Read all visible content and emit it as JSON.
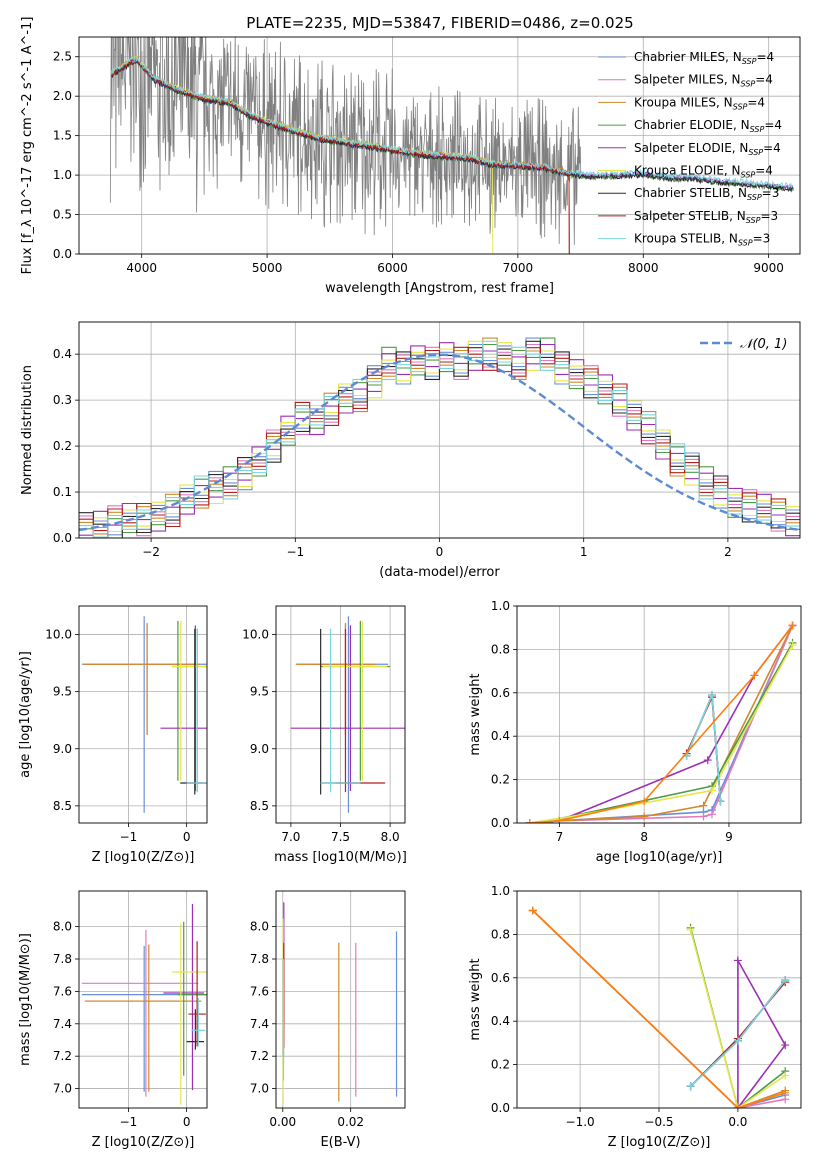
{
  "figure": {
    "title": "PLATE=2235, MJD=53847, FIBERID=0486, z=0.025"
  },
  "colors": {
    "grid": "#b0b0b0",
    "models": [
      "#6b8fd6",
      "#e377c2",
      "#d18a2a",
      "#4f9a45",
      "#9b2fb5",
      "#e4e64a",
      "#2b2b2b",
      "#b21f1f",
      "#7ad4e0"
    ],
    "gaussian": "#5b8ad6",
    "spectrum_data": "#808080",
    "extra_orange": "#ff7f0e"
  },
  "chart_data": [
    {
      "id": "spectrum",
      "type": "line",
      "title": "PLATE=2235, MJD=53847, FIBERID=0486, z=0.025",
      "xlabel": "wavelength [Angstrom, rest frame]",
      "ylabel": "Flux [f_λ 10^-17 erg cm^-2 s^-1 A^-1]",
      "xlim": [
        3500,
        9250
      ],
      "ylim": [
        0,
        2.75
      ],
      "xticks": [
        4000,
        5000,
        6000,
        7000,
        8000,
        9000
      ],
      "yticks": [
        0.0,
        0.5,
        1.0,
        1.5,
        2.0,
        2.5
      ],
      "legend": {
        "placement": "top-right",
        "entries": [
          {
            "model": "Chabrier MILES",
            "nssp": "4"
          },
          {
            "model": "Salpeter MILES",
            "nssp": "4"
          },
          {
            "model": "Kroupa MILES",
            "nssp": "4"
          },
          {
            "model": "Chabrier ELODIE",
            "nssp": "4"
          },
          {
            "model": "Salpeter ELODIE",
            "nssp": "4"
          },
          {
            "model": "Kroupa ELODIE",
            "nssp": "4"
          },
          {
            "model": "Chabrier STELIB",
            "nssp": "3"
          },
          {
            "model": "Salpeter STELIB",
            "nssp": "3"
          },
          {
            "model": "Kroupa STELIB",
            "nssp": "3"
          }
        ]
      },
      "continuum": {
        "x": [
          3750,
          3850,
          3950,
          4100,
          4300,
          4500,
          4700,
          4850,
          5000,
          5200,
          5400,
          5600,
          5800,
          6000,
          6200,
          6400,
          6600,
          6800,
          7000,
          7200,
          7400,
          7600,
          7800,
          8000,
          8200,
          8400,
          8600,
          8800,
          9000,
          9200
        ],
        "y": [
          2.25,
          2.35,
          2.45,
          2.2,
          2.05,
          1.95,
          1.9,
          1.75,
          1.65,
          1.55,
          1.45,
          1.4,
          1.35,
          1.3,
          1.25,
          1.22,
          1.2,
          1.12,
          1.1,
          1.08,
          1.0,
          0.97,
          0.98,
          1.0,
          0.95,
          0.95,
          0.9,
          0.88,
          0.85,
          0.82
        ]
      },
      "model_cutoffs": [
        {
          "series": "Kroupa ELODIE",
          "x_end": 6800
        },
        {
          "series": "MILES and Salpeter STELIB",
          "x_end": 7410
        }
      ]
    },
    {
      "id": "residual-hist",
      "type": "step",
      "xlabel": "(data-model)/error",
      "ylabel": "Normed distribution",
      "xlim": [
        -2.5,
        2.5
      ],
      "ylim": [
        0,
        0.47
      ],
      "xticks": [
        -2,
        -1,
        0,
        1,
        2
      ],
      "yticks": [
        0.0,
        0.1,
        0.2,
        0.3,
        0.4
      ],
      "legend": {
        "placement": "top-right",
        "entries": [
          "𝒩(0, 1)"
        ]
      },
      "bin_width": 0.1,
      "bin_start": -2.5,
      "base_values": [
        0.02,
        0.03,
        0.035,
        0.04,
        0.04,
        0.05,
        0.06,
        0.08,
        0.1,
        0.11,
        0.12,
        0.14,
        0.17,
        0.2,
        0.23,
        0.26,
        0.26,
        0.28,
        0.3,
        0.31,
        0.34,
        0.38,
        0.37,
        0.39,
        0.38,
        0.39,
        0.38,
        0.4,
        0.4,
        0.39,
        0.38,
        0.4,
        0.4,
        0.37,
        0.36,
        0.34,
        0.32,
        0.3,
        0.27,
        0.24,
        0.2,
        0.17,
        0.15,
        0.12,
        0.1,
        0.08,
        0.07,
        0.06,
        0.05,
        0.04
      ]
    },
    {
      "id": "age-vs-Z",
      "type": "errorbar",
      "xlabel": "Z [log10(Z/Z⊙)]",
      "ylabel": "age [log10(age/yr)]",
      "xlim": [
        -1.85,
        0.35
      ],
      "ylim": [
        8.35,
        10.25
      ],
      "xticks": [
        -1,
        0
      ],
      "yticks": [
        8.5,
        9.0,
        9.5,
        10.0
      ],
      "points": [
        {
          "x": -0.73,
          "y": 9.74,
          "xerr": [
            1.07,
            1.07
          ],
          "yerr": [
            1.3,
            0.42
          ]
        },
        {
          "x": -0.68,
          "y": 9.74,
          "xerr": [
            1.1,
            0.9
          ],
          "yerr": [
            0.62,
            0.36
          ]
        },
        {
          "x": -0.68,
          "y": 9.74,
          "xerr": [
            1.1,
            0.9
          ],
          "yerr": [
            0.62,
            0.36
          ]
        },
        {
          "x": -0.15,
          "y": 9.72,
          "xerr": [
            0.1,
            0.5
          ],
          "yerr": [
            1.0,
            0.4
          ]
        },
        {
          "x": 0.15,
          "y": 9.18,
          "xerr": [
            0.6,
            0.3
          ],
          "yerr": [
            0.55,
            0.9
          ]
        },
        {
          "x": -0.1,
          "y": 9.72,
          "xerr": [
            0.15,
            0.45
          ],
          "yerr": [
            1.0,
            0.4
          ]
        },
        {
          "x": 0.14,
          "y": 8.7,
          "xerr": [
            0.25,
            0.2
          ],
          "yerr": [
            0.1,
            1.35
          ]
        },
        {
          "x": 0.18,
          "y": 8.7,
          "xerr": [
            0.18,
            0.18
          ],
          "yerr": [
            0.08,
            1.35
          ]
        },
        {
          "x": 0.18,
          "y": 8.7,
          "xerr": [
            0.18,
            0.18
          ],
          "yerr": [
            0.08,
            1.35
          ]
        }
      ]
    },
    {
      "id": "age-vs-mass",
      "type": "errorbar",
      "xlabel": "mass [log10(M/M⊙)]",
      "ylabel": "",
      "xlim": [
        6.85,
        8.15
      ],
      "ylim": [
        8.35,
        10.25
      ],
      "xticks": [
        7.0,
        7.5,
        8.0
      ],
      "yticks": [
        8.5,
        9.0,
        9.5,
        10.0
      ],
      "points": [
        {
          "x": 7.58,
          "y": 9.74,
          "xerr": [
            0.4,
            0.4
          ],
          "yerr": [
            1.3,
            0.42
          ]
        },
        {
          "x": 7.55,
          "y": 9.74,
          "xerr": [
            0.5,
            0.3
          ],
          "yerr": [
            0.62,
            0.36
          ]
        },
        {
          "x": 7.55,
          "y": 9.74,
          "xerr": [
            0.5,
            0.3
          ],
          "yerr": [
            0.62,
            0.36
          ]
        },
        {
          "x": 7.7,
          "y": 9.72,
          "xerr": [
            0.4,
            0.3
          ],
          "yerr": [
            1.0,
            0.4
          ]
        },
        {
          "x": 7.6,
          "y": 9.18,
          "xerr": [
            0.6,
            0.6
          ],
          "yerr": [
            0.55,
            0.9
          ]
        },
        {
          "x": 7.72,
          "y": 9.72,
          "xerr": [
            0.4,
            0.25
          ],
          "yerr": [
            1.0,
            0.4
          ]
        },
        {
          "x": 7.3,
          "y": 8.7,
          "xerr": [
            0.0,
            0.4
          ],
          "yerr": [
            0.1,
            1.35
          ]
        },
        {
          "x": 7.55,
          "y": 8.7,
          "xerr": [
            0.1,
            0.4
          ],
          "yerr": [
            0.08,
            1.35
          ]
        },
        {
          "x": 7.4,
          "y": 8.7,
          "xerr": [
            0.1,
            0.3
          ],
          "yerr": [
            0.08,
            1.35
          ]
        }
      ]
    },
    {
      "id": "massweight-vs-age",
      "type": "line",
      "xlabel": "age [log10(age/yr)]",
      "ylabel": "mass weight",
      "xlim": [
        6.5,
        9.85
      ],
      "ylim": [
        0,
        1.0
      ],
      "xticks": [
        7,
        8,
        9
      ],
      "yticks": [
        0.0,
        0.2,
        0.4,
        0.6,
        0.8,
        1.0
      ],
      "series": [
        {
          "name": "Chabrier MILES",
          "x": [
            6.65,
            7.0,
            8.7,
            8.8,
            9.75
          ],
          "y": [
            0.0,
            0.01,
            0.05,
            0.06,
            0.91
          ]
        },
        {
          "name": "Salpeter MILES",
          "x": [
            6.65,
            7.0,
            8.7,
            8.8,
            9.75
          ],
          "y": [
            0.0,
            0.01,
            0.03,
            0.04,
            0.91
          ]
        },
        {
          "name": "Kroupa MILES",
          "x": [
            6.65,
            7.0,
            8.0,
            8.7,
            9.75
          ],
          "y": [
            0.0,
            0.01,
            0.03,
            0.08,
            0.91
          ]
        },
        {
          "name": "Chabrier ELODIE",
          "x": [
            6.65,
            7.0,
            8.8,
            9.75
          ],
          "y": [
            0.0,
            0.02,
            0.17,
            0.83
          ]
        },
        {
          "name": "Salpeter ELODIE",
          "x": [
            6.65,
            7.0,
            8.75,
            9.3,
            9.75
          ],
          "y": [
            0.0,
            0.01,
            0.29,
            0.68,
            0.91
          ]
        },
        {
          "name": "Kroupa ELODIE",
          "x": [
            6.65,
            7.0,
            8.8,
            9.75
          ],
          "y": [
            0.0,
            0.02,
            0.15,
            0.82
          ]
        },
        {
          "name": "Chabrier STELIB",
          "x": [
            8.5,
            8.8,
            8.9
          ],
          "y": [
            0.31,
            0.59,
            0.1
          ]
        },
        {
          "name": "Salpeter STELIB",
          "x": [
            8.5,
            8.8,
            8.9
          ],
          "y": [
            0.32,
            0.58,
            0.1
          ]
        },
        {
          "name": "Kroupa STELIB",
          "x": [
            8.5,
            8.8,
            8.9
          ],
          "y": [
            0.31,
            0.59,
            0.1
          ]
        },
        {
          "name": "",
          "x": [
            6.65,
            7.0,
            8.0,
            9.3,
            9.75
          ],
          "y": [
            0.0,
            0.01,
            0.1,
            0.68,
            0.91
          ]
        }
      ]
    },
    {
      "id": "mass-vs-Z",
      "type": "errorbar",
      "xlabel": "Z [log10(Z/Z⊙)]",
      "ylabel": "mass [log10(M/M⊙)]",
      "xlim": [
        -1.85,
        0.35
      ],
      "ylim": [
        6.88,
        8.22
      ],
      "xticks": [
        -1,
        0
      ],
      "yticks": [
        7.0,
        7.2,
        7.4,
        7.6,
        7.8,
        8.0
      ],
      "points": [
        {
          "x": -0.73,
          "y": 7.58,
          "xerr": [
            1.07,
            1.07
          ],
          "yerr": [
            0.6,
            0.3
          ]
        },
        {
          "x": -0.7,
          "y": 7.65,
          "xerr": [
            1.1,
            0.9
          ],
          "yerr": [
            0.7,
            0.33
          ]
        },
        {
          "x": -0.65,
          "y": 7.54,
          "xerr": [
            1.1,
            0.9
          ],
          "yerr": [
            0.56,
            0.35
          ]
        },
        {
          "x": -0.05,
          "y": 7.58,
          "xerr": [
            0.1,
            0.4
          ],
          "yerr": [
            0.5,
            0.45
          ]
        },
        {
          "x": 0.1,
          "y": 7.59,
          "xerr": [
            0.5,
            0.2
          ],
          "yerr": [
            0.6,
            0.55
          ]
        },
        {
          "x": -0.1,
          "y": 7.72,
          "xerr": [
            0.15,
            0.45
          ],
          "yerr": [
            0.82,
            0.3
          ]
        },
        {
          "x": 0.15,
          "y": 7.29,
          "xerr": [
            0.15,
            0.15
          ],
          "yerr": [
            0.05,
            0.2
          ]
        },
        {
          "x": 0.18,
          "y": 7.46,
          "xerr": [
            0.15,
            0.15
          ],
          "yerr": [
            0.2,
            0.45
          ]
        },
        {
          "x": 0.2,
          "y": 7.36,
          "xerr": [
            0.12,
            0.12
          ],
          "yerr": [
            0.1,
            0.2
          ]
        }
      ]
    },
    {
      "id": "mass-vs-ebv",
      "type": "errorbar",
      "xlabel": "E(B-V)",
      "ylabel": "",
      "xlim": [
        -0.002,
        0.036
      ],
      "ylim": [
        6.88,
        8.22
      ],
      "xticks": [
        0.0,
        0.02
      ],
      "yticks": [
        7.0,
        7.2,
        7.4,
        7.6,
        7.8,
        8.0
      ],
      "points": [
        {
          "x": 0.0335,
          "y": 7.5,
          "xerr": [
            0,
            0
          ],
          "yerr": [
            0.55,
            0.47
          ]
        },
        {
          "x": 0.0215,
          "y": 7.4,
          "xerr": [
            0,
            0
          ],
          "yerr": [
            0.45,
            0.5
          ]
        },
        {
          "x": 0.0165,
          "y": 7.45,
          "xerr": [
            0,
            0
          ],
          "yerr": [
            0.53,
            0.45
          ]
        },
        {
          "x": 0.0002,
          "y": 7.6,
          "xerr": [
            0,
            0
          ],
          "yerr": [
            0.55,
            0.45
          ]
        },
        {
          "x": 0.0003,
          "y": 7.7,
          "xerr": [
            0,
            0
          ],
          "yerr": [
            0.3,
            0.45
          ]
        },
        {
          "x": 0.0001,
          "y": 7.5,
          "xerr": [
            0,
            0
          ],
          "yerr": [
            0.6,
            0.55
          ]
        },
        {
          "x": 0.0002,
          "y": 7.3,
          "xerr": [
            0,
            0
          ],
          "yerr": [
            0.1,
            0.5
          ]
        },
        {
          "x": 0.0003,
          "y": 7.45,
          "xerr": [
            0,
            0
          ],
          "yerr": [
            0.2,
            0.45
          ]
        },
        {
          "x": 0.0002,
          "y": 7.35,
          "xerr": [
            0,
            0
          ],
          "yerr": [
            0.2,
            0.45
          ]
        }
      ]
    },
    {
      "id": "massweight-vs-Z",
      "type": "line",
      "xlabel": "Z [log10(Z/Z⊙)]",
      "ylabel": "mass weight",
      "xlim": [
        -1.4,
        0.4
      ],
      "ylim": [
        0,
        1.0
      ],
      "xticks": [
        -1.0,
        -0.5,
        0.0
      ],
      "yticks": [
        0.0,
        0.2,
        0.4,
        0.6,
        0.8,
        1.0
      ],
      "series": [
        {
          "name": "Chabrier MILES",
          "x": [
            -1.3,
            0.0,
            0.3
          ],
          "y": [
            0.91,
            0.0,
            0.06
          ]
        },
        {
          "name": "Salpeter MILES",
          "x": [
            -1.3,
            0.0,
            0.3
          ],
          "y": [
            0.91,
            0.0,
            0.04
          ]
        },
        {
          "name": "Kroupa MILES",
          "x": [
            -1.3,
            0.0,
            0.3
          ],
          "y": [
            0.91,
            0.0,
            0.08
          ]
        },
        {
          "name": "Chabrier ELODIE",
          "x": [
            -0.3,
            0.0,
            0.3
          ],
          "y": [
            0.83,
            0.0,
            0.17
          ]
        },
        {
          "name": "Salpeter ELODIE",
          "x": [
            0.0,
            0.0,
            0.3,
            0.0
          ],
          "y": [
            0.0,
            0.68,
            0.29,
            0.0
          ]
        },
        {
          "name": "Kroupa ELODIE",
          "x": [
            -0.3,
            0.0,
            0.3
          ],
          "y": [
            0.82,
            0.0,
            0.15
          ]
        },
        {
          "name": "Chabrier STELIB",
          "x": [
            -0.3,
            0.0,
            0.3
          ],
          "y": [
            0.1,
            0.31,
            0.59
          ]
        },
        {
          "name": "Salpeter STELIB",
          "x": [
            -0.3,
            0.0,
            0.3
          ],
          "y": [
            0.1,
            0.32,
            0.58
          ]
        },
        {
          "name": "Kroupa STELIB",
          "x": [
            -0.3,
            0.0,
            0.3
          ],
          "y": [
            0.1,
            0.31,
            0.59
          ]
        },
        {
          "name": "",
          "x": [
            -1.3,
            0.0,
            0.3
          ],
          "y": [
            0.91,
            0.0,
            0.07
          ]
        }
      ]
    }
  ]
}
